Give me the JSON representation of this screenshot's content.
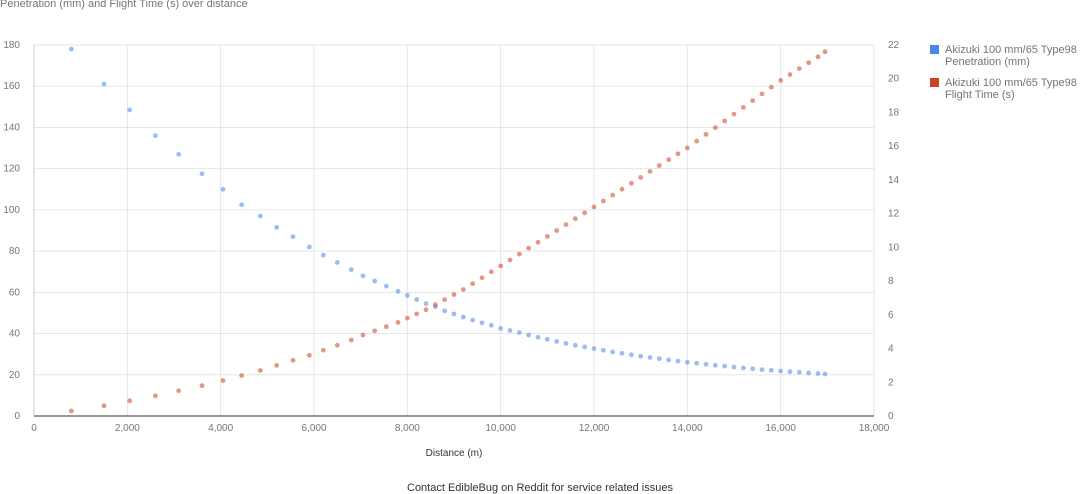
{
  "header": {
    "title": "Penetration (mm) and Flight Time (s) over distance"
  },
  "footer": {
    "text": "Contact EdibleBug on Reddit for service related issues"
  },
  "legend": {
    "items": [
      {
        "label": "Akizuki 100 mm/65 Type98 Penetration (mm)",
        "color": "#4a86e8"
      },
      {
        "label": "Akizuki 100 mm/65 Type98 Flight Time (s)",
        "color": "#cc4125"
      }
    ]
  },
  "chart_data": {
    "type": "scatter",
    "title": "Penetration (mm) and Flight Time (s) over distance",
    "xlabel": "Distance (m)",
    "ylabel_left": "",
    "ylabel_right": "",
    "xlim": [
      0,
      18000
    ],
    "ylim_left": [
      0,
      180
    ],
    "ylim_right": [
      0,
      22
    ],
    "x_ticks": [
      "0",
      "2,000",
      "4,000",
      "6,000",
      "8,000",
      "10,000",
      "12,000",
      "14,000",
      "16,000",
      "18,000"
    ],
    "y_left_ticks": [
      "0",
      "20",
      "40",
      "60",
      "80",
      "100",
      "120",
      "140",
      "160",
      "180"
    ],
    "y_right_ticks": [
      "0",
      "2",
      "4",
      "6",
      "8",
      "10",
      "12",
      "14",
      "16",
      "18",
      "20",
      "22"
    ],
    "grid": true,
    "legend_position": "right",
    "series": [
      {
        "name": "Akizuki 100 mm/65 Type98 Penetration (mm)",
        "axis": "left",
        "color": "#4a86e8",
        "points": [
          [
            800,
            178
          ],
          [
            1500,
            161
          ],
          [
            2050,
            148.5
          ],
          [
            2600,
            136
          ],
          [
            3100,
            127
          ],
          [
            3600,
            117.5
          ],
          [
            4050,
            110
          ],
          [
            4450,
            102.5
          ],
          [
            4850,
            97
          ],
          [
            5200,
            91.5
          ],
          [
            5550,
            87
          ],
          [
            5900,
            82
          ],
          [
            6200,
            78
          ],
          [
            6500,
            74.5
          ],
          [
            6800,
            71
          ],
          [
            7050,
            68
          ],
          [
            7300,
            65.5
          ],
          [
            7550,
            63
          ],
          [
            7800,
            60.5
          ],
          [
            8000,
            58.5
          ],
          [
            8200,
            56.5
          ],
          [
            8400,
            54.5
          ],
          [
            8600,
            53
          ],
          [
            8800,
            51
          ],
          [
            9000,
            49.5
          ],
          [
            9200,
            48
          ],
          [
            9400,
            46.5
          ],
          [
            9600,
            45.2
          ],
          [
            9800,
            44
          ],
          [
            10000,
            42.5
          ],
          [
            10200,
            41.5
          ],
          [
            10400,
            40.5
          ],
          [
            10600,
            39.3
          ],
          [
            10800,
            38.2
          ],
          [
            11000,
            37.2
          ],
          [
            11200,
            36.2
          ],
          [
            11400,
            35.2
          ],
          [
            11600,
            34.3
          ],
          [
            11800,
            33.5
          ],
          [
            12000,
            32.7
          ],
          [
            12200,
            31.9
          ],
          [
            12400,
            31.1
          ],
          [
            12600,
            30.4
          ],
          [
            12800,
            29.7
          ],
          [
            13000,
            29
          ],
          [
            13200,
            28.4
          ],
          [
            13400,
            27.8
          ],
          [
            13600,
            27.2
          ],
          [
            13800,
            26.6
          ],
          [
            14000,
            26.1
          ],
          [
            14200,
            25.6
          ],
          [
            14400,
            25.1
          ],
          [
            14600,
            24.6
          ],
          [
            14800,
            24.2
          ],
          [
            15000,
            23.7
          ],
          [
            15200,
            23.3
          ],
          [
            15400,
            22.9
          ],
          [
            15600,
            22.5
          ],
          [
            15800,
            22.2
          ],
          [
            16000,
            21.8
          ],
          [
            16200,
            21.5
          ],
          [
            16400,
            21.2
          ],
          [
            16600,
            20.9
          ],
          [
            16800,
            20.6
          ],
          [
            16950,
            20.4
          ]
        ]
      },
      {
        "name": "Akizuki 100 mm/65 Type98 Flight Time (s)",
        "axis": "right",
        "color": "#cc4125",
        "points": [
          [
            800,
            0.3
          ],
          [
            1500,
            0.6
          ],
          [
            2050,
            0.9
          ],
          [
            2600,
            1.2
          ],
          [
            3100,
            1.5
          ],
          [
            3600,
            1.8
          ],
          [
            4050,
            2.1
          ],
          [
            4450,
            2.4
          ],
          [
            4850,
            2.7
          ],
          [
            5200,
            3.0
          ],
          [
            5550,
            3.3
          ],
          [
            5900,
            3.6
          ],
          [
            6200,
            3.9
          ],
          [
            6500,
            4.2
          ],
          [
            6800,
            4.5
          ],
          [
            7050,
            4.8
          ],
          [
            7300,
            5.05
          ],
          [
            7550,
            5.3
          ],
          [
            7800,
            5.55
          ],
          [
            8000,
            5.8
          ],
          [
            8200,
            6.05
          ],
          [
            8400,
            6.3
          ],
          [
            8600,
            6.6
          ],
          [
            8800,
            6.9
          ],
          [
            9000,
            7.2
          ],
          [
            9200,
            7.5
          ],
          [
            9400,
            7.85
          ],
          [
            9600,
            8.2
          ],
          [
            9800,
            8.55
          ],
          [
            10000,
            8.9
          ],
          [
            10200,
            9.25
          ],
          [
            10400,
            9.6
          ],
          [
            10600,
            9.95
          ],
          [
            10800,
            10.3
          ],
          [
            11000,
            10.65
          ],
          [
            11200,
            11.0
          ],
          [
            11400,
            11.35
          ],
          [
            11600,
            11.7
          ],
          [
            11800,
            12.05
          ],
          [
            12000,
            12.4
          ],
          [
            12200,
            12.75
          ],
          [
            12400,
            13.1
          ],
          [
            12600,
            13.45
          ],
          [
            12800,
            13.8
          ],
          [
            13000,
            14.15
          ],
          [
            13200,
            14.5
          ],
          [
            13400,
            14.85
          ],
          [
            13600,
            15.2
          ],
          [
            13800,
            15.55
          ],
          [
            14000,
            15.9
          ],
          [
            14200,
            16.3
          ],
          [
            14400,
            16.7
          ],
          [
            14600,
            17.1
          ],
          [
            14800,
            17.5
          ],
          [
            15000,
            17.9
          ],
          [
            15200,
            18.3
          ],
          [
            15400,
            18.7
          ],
          [
            15600,
            19.1
          ],
          [
            15800,
            19.5
          ],
          [
            16000,
            19.9
          ],
          [
            16200,
            20.25
          ],
          [
            16400,
            20.6
          ],
          [
            16600,
            20.95
          ],
          [
            16800,
            21.3
          ],
          [
            16950,
            21.6
          ]
        ]
      }
    ]
  }
}
